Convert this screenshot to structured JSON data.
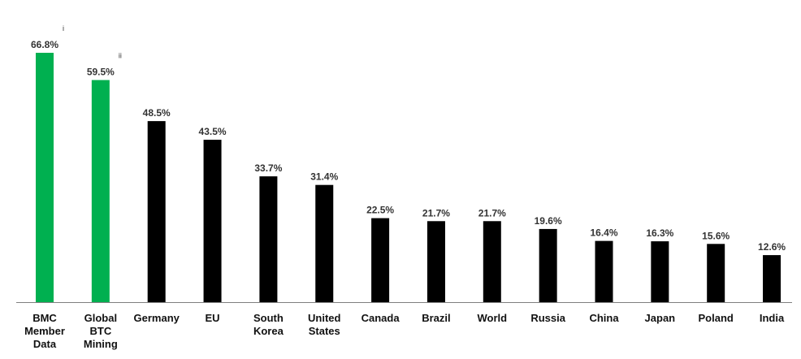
{
  "chart_data": {
    "type": "bar",
    "title": "",
    "xlabel": "",
    "ylabel": "",
    "ylim": [
      0,
      70
    ],
    "grid": false,
    "legend": "none",
    "categories": [
      [
        "BMC",
        "Member",
        "Data"
      ],
      [
        "Global",
        "BTC",
        "Mining"
      ],
      [
        "Germany"
      ],
      [
        "EU"
      ],
      [
        "South",
        "Korea"
      ],
      [
        "United",
        "States"
      ],
      [
        "Canada"
      ],
      [
        "Brazil"
      ],
      [
        "World"
      ],
      [
        "Russia"
      ],
      [
        "China"
      ],
      [
        "Japan"
      ],
      [
        "Poland"
      ],
      [
        "India"
      ]
    ],
    "values": [
      66.8,
      59.5,
      48.5,
      43.5,
      33.7,
      31.4,
      22.5,
      21.7,
      21.7,
      19.6,
      16.4,
      16.3,
      15.6,
      12.6
    ],
    "value_labels": [
      "66.8%",
      "59.5%",
      "48.5%",
      "43.5%",
      "33.7%",
      "31.4%",
      "22.5%",
      "21.7%",
      "21.7%",
      "19.6%",
      "16.4%",
      "16.3%",
      "15.6%",
      "12.6%"
    ],
    "footnote_marks": [
      "i",
      "ii",
      "",
      "",
      "",
      "",
      "",
      "",
      "",
      "",
      "",
      "",
      "",
      ""
    ],
    "highlight_count": 2,
    "colors": {
      "highlight": "#00b050",
      "default": "#000000",
      "axis": "#7f7f7f"
    }
  }
}
